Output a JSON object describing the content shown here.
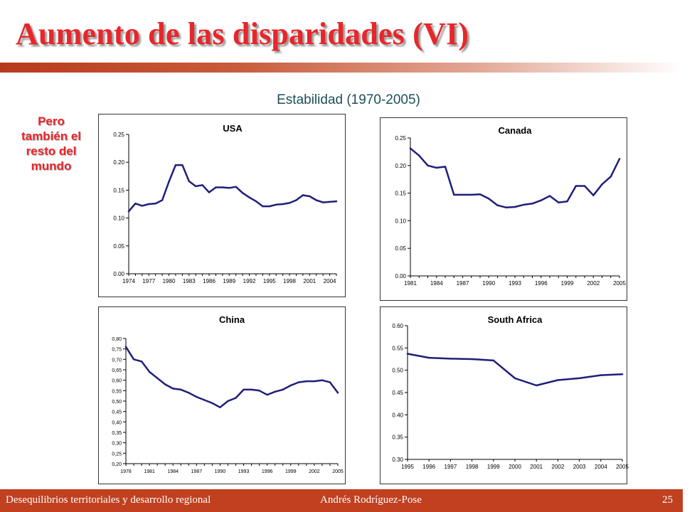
{
  "slide": {
    "title": "Aumento de las disparidades (VI)",
    "subtitle": "Estabilidad (1970-2005)",
    "side_note": "Pero también el resto del mundo",
    "footer_left": "Desequilibrios territoriales y desarrollo regional",
    "footer_center": "Andrés  Rodríguez-Pose",
    "page_number": "25"
  },
  "colors": {
    "title": "#e8262a",
    "line": "#1f1f7a",
    "footer_bg": "#c0401f",
    "subtitle": "#1c4f5a"
  },
  "chart_data": [
    {
      "type": "line",
      "title": "USA",
      "x": [
        1974,
        1975,
        1976,
        1977,
        1978,
        1979,
        1980,
        1981,
        1982,
        1983,
        1984,
        1985,
        1986,
        1987,
        1988,
        1989,
        1990,
        1991,
        1992,
        1993,
        1994,
        1995,
        1996,
        1997,
        1998,
        1999,
        2000,
        2001,
        2002,
        2003,
        2004,
        2005
      ],
      "values": [
        0.112,
        0.126,
        0.122,
        0.125,
        0.126,
        0.132,
        0.165,
        0.195,
        0.195,
        0.166,
        0.157,
        0.159,
        0.146,
        0.155,
        0.155,
        0.154,
        0.156,
        0.145,
        0.137,
        0.13,
        0.121,
        0.121,
        0.124,
        0.125,
        0.127,
        0.132,
        0.141,
        0.139,
        0.132,
        0.128,
        0.129,
        0.13
      ],
      "xticks": [
        "1974",
        "1977",
        "1980",
        "1983",
        "1986",
        "1989",
        "1992",
        "1995",
        "1998",
        "2001",
        "2004"
      ],
      "ylim": [
        0,
        0.25
      ],
      "yticks": [
        "0.00",
        "0.05",
        "0.10",
        "0.15",
        "0.20",
        "0.25"
      ]
    },
    {
      "type": "line",
      "title": "Canada",
      "x": [
        1981,
        1982,
        1983,
        1984,
        1985,
        1986,
        1987,
        1988,
        1989,
        1990,
        1991,
        1992,
        1993,
        1994,
        1995,
        1996,
        1997,
        1998,
        1999,
        2000,
        2001,
        2002,
        2003,
        2004,
        2005
      ],
      "values": [
        0.231,
        0.218,
        0.2,
        0.196,
        0.198,
        0.147,
        0.147,
        0.147,
        0.148,
        0.14,
        0.128,
        0.124,
        0.125,
        0.129,
        0.131,
        0.137,
        0.145,
        0.133,
        0.135,
        0.163,
        0.163,
        0.146,
        0.166,
        0.18,
        0.212
      ],
      "xticks": [
        "1981",
        "1984",
        "1987",
        "1990",
        "1993",
        "1996",
        "1999",
        "2002",
        "2005"
      ],
      "ylim": [
        0,
        0.25
      ],
      "yticks": [
        "0.00",
        "0.05",
        "0.10",
        "0.15",
        "0.20",
        "0.25"
      ]
    },
    {
      "type": "line",
      "title": "China",
      "x": [
        1978,
        1979,
        1980,
        1981,
        1982,
        1983,
        1984,
        1985,
        1986,
        1987,
        1988,
        1989,
        1990,
        1991,
        1992,
        1993,
        1994,
        1995,
        1996,
        1997,
        1998,
        1999,
        2000,
        2001,
        2002,
        2003,
        2004,
        2005
      ],
      "values": [
        0.76,
        0.7,
        0.69,
        0.64,
        0.61,
        0.58,
        0.56,
        0.555,
        0.54,
        0.52,
        0.505,
        0.49,
        0.47,
        0.5,
        0.515,
        0.555,
        0.555,
        0.55,
        0.53,
        0.545,
        0.555,
        0.575,
        0.59,
        0.595,
        0.595,
        0.6,
        0.59,
        0.54
      ],
      "xticks": [
        "1978",
        "1981",
        "1984",
        "1987",
        "1990",
        "1993",
        "1996",
        "1999",
        "2002",
        "2005"
      ],
      "ylim": [
        0.2,
        0.8
      ],
      "yticks": [
        "0,20",
        "0,25",
        "0,30",
        "0,35",
        "0,40",
        "0,45",
        "0,50",
        "0,55",
        "0,60",
        "0,65",
        "0,70",
        "0,75",
        "0,80"
      ]
    },
    {
      "type": "line",
      "title": "South Africa",
      "x": [
        1995,
        1996,
        1997,
        1998,
        1999,
        2000,
        2001,
        2002,
        2003,
        2004,
        2005
      ],
      "values": [
        0.537,
        0.528,
        0.526,
        0.525,
        0.522,
        0.482,
        0.466,
        0.478,
        0.482,
        0.489,
        0.491
      ],
      "xticks": [
        "1995",
        "1996",
        "1997",
        "1998",
        "1999",
        "2000",
        "2001",
        "2002",
        "2003",
        "2004",
        "2005"
      ],
      "ylim": [
        0.3,
        0.6
      ],
      "yticks": [
        "0.30",
        "0.35",
        "0.40",
        "0.45",
        "0.50",
        "0.55",
        "0.60"
      ]
    }
  ]
}
